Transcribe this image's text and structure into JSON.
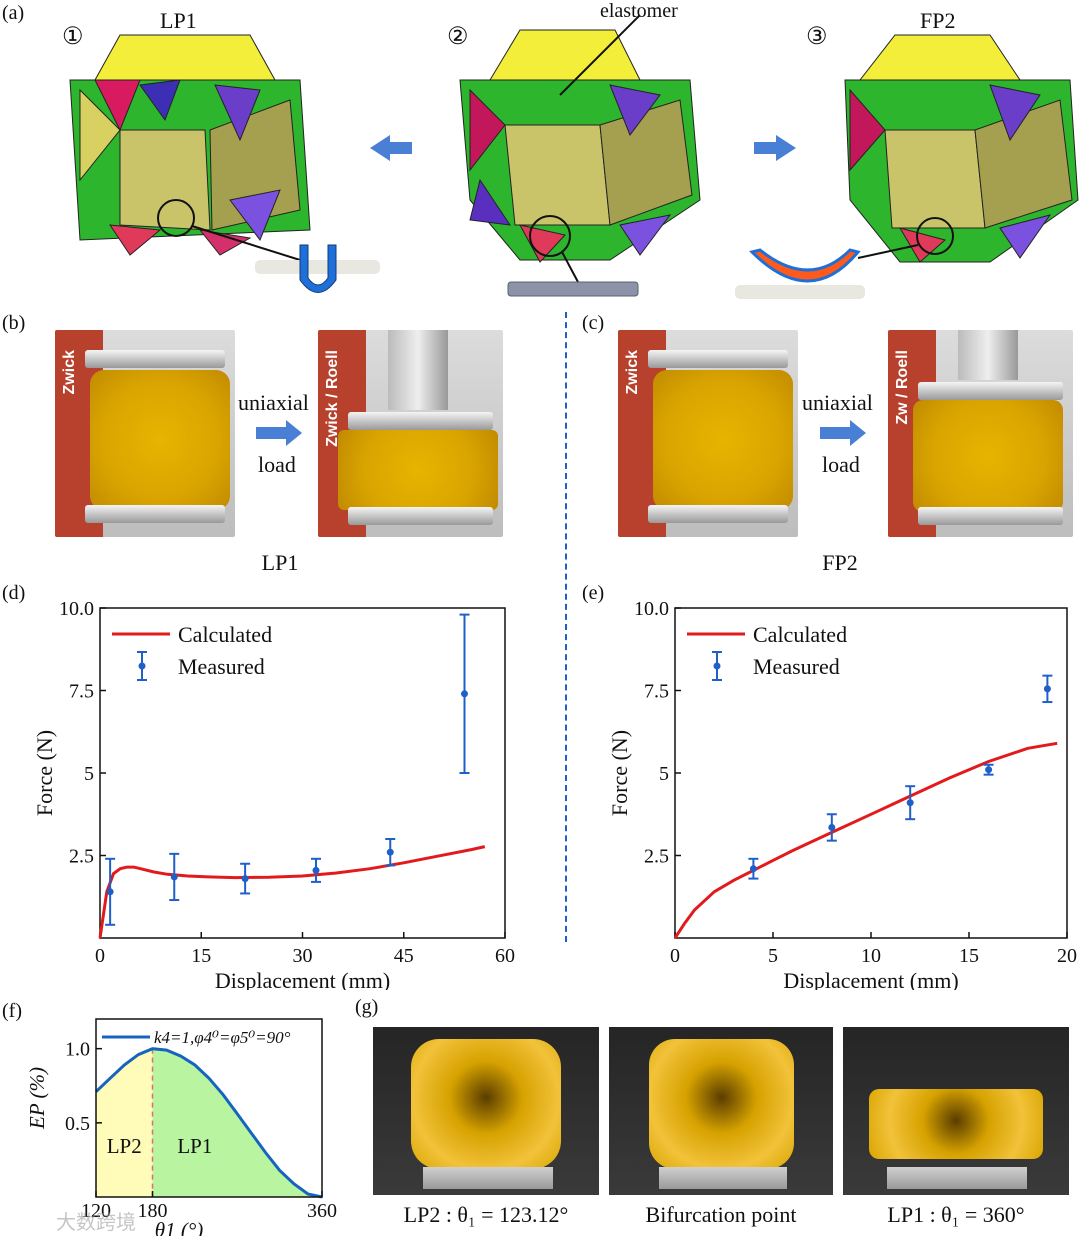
{
  "panel_a": {
    "label": "(a)",
    "states": [
      {
        "num": "①",
        "name": "LP1"
      },
      {
        "num": "②",
        "name": ""
      },
      {
        "num": "③",
        "name": "FP2"
      }
    ],
    "elastomer_label": "elastomer"
  },
  "panel_b": {
    "label": "(b)",
    "arrow_text_1": "uniaxial",
    "arrow_text_2": "load",
    "caption": "LP1",
    "brand": "Zwick",
    "brand2": "Zwick / Roell"
  },
  "panel_c": {
    "label": "(c)",
    "arrow_text_1": "uniaxial",
    "arrow_text_2": "load",
    "caption": "FP2",
    "brand": "Zwick",
    "brand2": "Zw / Roell"
  },
  "panel_g": {
    "label": "(g)",
    "captions": [
      "LP2 : θ₁ = 123.12°",
      "Bifurcation point",
      "LP1 : θ₁ = 360°"
    ]
  },
  "watermark": "大数跨境",
  "colors": {
    "calculated": "#e31a1c",
    "measured": "#1f5fc8",
    "lp2_fill": "#fffbb8",
    "lp1_fill": "#b9f5a0",
    "curve_f": "#1565c0"
  },
  "chart_data": [
    {
      "id": "d",
      "panel_label": "(d)",
      "type": "line",
      "xlabel": "Displacement (mm)",
      "ylabel": "Force (N)",
      "xlim": [
        0,
        60
      ],
      "ylim": [
        0,
        10
      ],
      "xticks": [
        "0",
        "15",
        "30",
        "45",
        "60"
      ],
      "yticks": [
        "2.5",
        "5",
        "7.5",
        "10.0"
      ],
      "legend": [
        "Calculated",
        "Measured"
      ],
      "legend_position": "top-left",
      "series": [
        {
          "name": "Calculated",
          "x": [
            0,
            0.5,
            1,
            2,
            3,
            4,
            5,
            6,
            8,
            10,
            13,
            16,
            20,
            25,
            30,
            35,
            40,
            45,
            50,
            55,
            57
          ],
          "y": [
            0,
            0.7,
            1.4,
            1.95,
            2.1,
            2.15,
            2.15,
            2.1,
            2.0,
            1.93,
            1.88,
            1.85,
            1.83,
            1.84,
            1.88,
            1.97,
            2.1,
            2.28,
            2.48,
            2.68,
            2.77
          ]
        },
        {
          "name": "Measured",
          "x": [
            1.5,
            11,
            21.5,
            32,
            43,
            54
          ],
          "y": [
            1.4,
            1.85,
            1.8,
            2.05,
            2.6,
            7.4
          ],
          "err": [
            1.0,
            0.7,
            0.45,
            0.35,
            0.4,
            2.4
          ]
        }
      ]
    },
    {
      "id": "e",
      "panel_label": "(e)",
      "type": "line",
      "xlabel": "Displacement (mm)",
      "ylabel": "Force (N)",
      "xlim": [
        0,
        20
      ],
      "ylim": [
        0,
        10
      ],
      "xticks": [
        "0",
        "5",
        "10",
        "15",
        "20"
      ],
      "yticks": [
        "2.5",
        "5",
        "7.5",
        "10.0"
      ],
      "legend": [
        "Calculated",
        "Measured"
      ],
      "legend_position": "top-left",
      "series": [
        {
          "name": "Calculated",
          "x": [
            0,
            0.5,
            1,
            2,
            3,
            4,
            5,
            6,
            8,
            10,
            12,
            14,
            16,
            18,
            19.5
          ],
          "y": [
            0,
            0.45,
            0.85,
            1.4,
            1.75,
            2.05,
            2.35,
            2.65,
            3.2,
            3.75,
            4.3,
            4.85,
            5.35,
            5.75,
            5.9
          ]
        },
        {
          "name": "Measured",
          "x": [
            4,
            8,
            12,
            16,
            19
          ],
          "y": [
            2.1,
            3.35,
            4.1,
            5.1,
            7.55
          ],
          "err": [
            0.3,
            0.4,
            0.5,
            0.15,
            0.4
          ]
        }
      ]
    },
    {
      "id": "f",
      "panel_label": "(f)",
      "type": "line",
      "xlabel": "θ1 (°)",
      "ylabel": "EP (%)",
      "xlim": [
        120,
        360
      ],
      "ylim": [
        0,
        1.2
      ],
      "xticks": [
        "120",
        "180",
        "360"
      ],
      "yticks": [
        "0.5",
        "1.0"
      ],
      "legend": [
        "k4=1,φ4⁰=φ5⁰=90°"
      ],
      "legend_position": "top",
      "regions": [
        {
          "name": "LP2",
          "from": 120,
          "to": 180
        },
        {
          "name": "LP1",
          "from": 180,
          "to": 360
        }
      ],
      "series": [
        {
          "name": "k4=1,φ4⁰=φ5⁰=90°",
          "x": [
            120,
            135,
            150,
            165,
            180,
            195,
            210,
            225,
            240,
            255,
            270,
            285,
            300,
            315,
            330,
            345,
            360
          ],
          "y": [
            0.71,
            0.8,
            0.89,
            0.96,
            1.0,
            0.99,
            0.95,
            0.89,
            0.8,
            0.69,
            0.56,
            0.43,
            0.3,
            0.18,
            0.09,
            0.02,
            0.0
          ]
        }
      ]
    }
  ]
}
